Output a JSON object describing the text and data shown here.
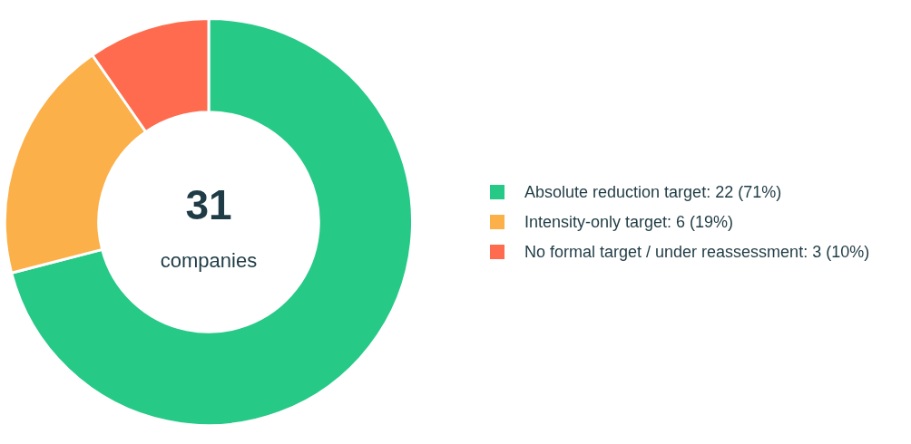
{
  "chart_data": {
    "type": "donut",
    "categories": [
      "Absolute reduction target: 22 (71%)",
      "Intensity-only target: 6 (19%)",
      "No formal target / under reassessment: 3 (10%)"
    ],
    "values": [
      22,
      6,
      3
    ],
    "colors": [
      "#26c985",
      "#fbb04a",
      "#fe6b4f"
    ],
    "annotations": [
      "31",
      "companies"
    ],
    "legend": "right"
  }
}
